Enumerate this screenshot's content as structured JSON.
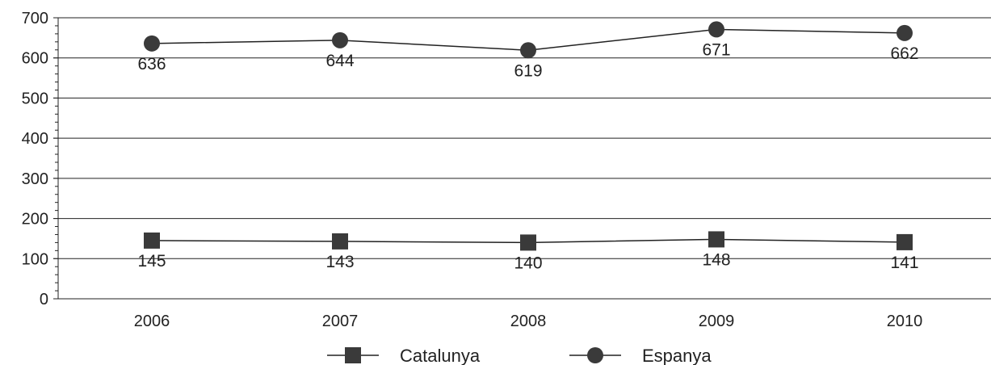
{
  "chart_data": {
    "type": "line",
    "title": "",
    "xlabel": "",
    "ylabel": "",
    "categories": [
      "2006",
      "2007",
      "2008",
      "2009",
      "2010"
    ],
    "ylim": [
      0,
      700
    ],
    "yticks": [
      "0",
      "100",
      "200",
      "300",
      "400",
      "500",
      "600",
      "700"
    ],
    "grid": true,
    "legend_position": "bottom",
    "series": [
      {
        "name": "Catalunya",
        "marker": "square",
        "values": [
          145,
          143,
          140,
          148,
          141
        ]
      },
      {
        "name": "Espanya",
        "marker": "circle",
        "values": [
          636,
          644,
          619,
          671,
          662
        ]
      }
    ],
    "colors": {
      "line": "#222222",
      "marker": "#3a3a3a",
      "grid": "#222222",
      "text": "#222222"
    }
  }
}
